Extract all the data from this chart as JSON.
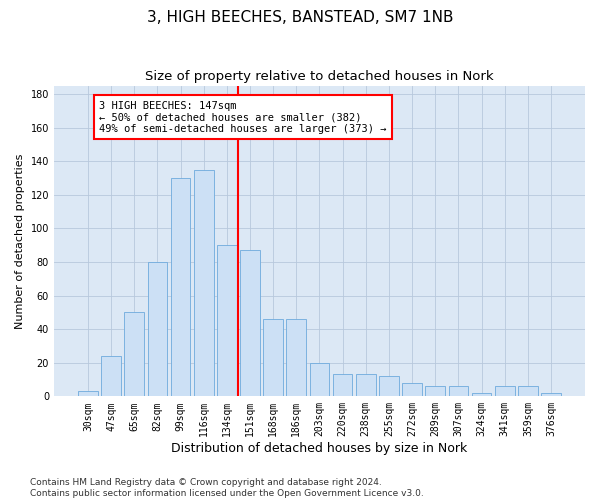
{
  "title": "3, HIGH BEECHES, BANSTEAD, SM7 1NB",
  "subtitle": "Size of property relative to detached houses in Nork",
  "xlabel": "Distribution of detached houses by size in Nork",
  "ylabel": "Number of detached properties",
  "bin_labels": [
    "30sqm",
    "47sqm",
    "65sqm",
    "82sqm",
    "99sqm",
    "116sqm",
    "134sqm",
    "151sqm",
    "168sqm",
    "186sqm",
    "203sqm",
    "220sqm",
    "238sqm",
    "255sqm",
    "272sqm",
    "289sqm",
    "307sqm",
    "324sqm",
    "341sqm",
    "359sqm",
    "376sqm"
  ],
  "bar_heights": [
    3,
    24,
    50,
    80,
    130,
    135,
    90,
    87,
    46,
    46,
    20,
    13,
    13,
    12,
    8,
    6,
    6,
    2,
    6,
    6,
    2
  ],
  "bar_color": "#cce0f5",
  "bar_edge_color": "#6eaadd",
  "vline_color": "red",
  "annotation_text": "3 HIGH BEECHES: 147sqm\n← 50% of detached houses are smaller (382)\n49% of semi-detached houses are larger (373) →",
  "annotation_box_color": "white",
  "annotation_box_edge_color": "red",
  "ylim": [
    0,
    185
  ],
  "yticks": [
    0,
    20,
    40,
    60,
    80,
    100,
    120,
    140,
    160,
    180
  ],
  "grid_color": "#b8c8dc",
  "background_color": "#dce8f5",
  "footer_text": "Contains HM Land Registry data © Crown copyright and database right 2024.\nContains public sector information licensed under the Open Government Licence v3.0.",
  "title_fontsize": 11,
  "subtitle_fontsize": 9.5,
  "xlabel_fontsize": 9,
  "ylabel_fontsize": 8,
  "tick_fontsize": 7,
  "annotation_fontsize": 7.5,
  "footer_fontsize": 6.5
}
